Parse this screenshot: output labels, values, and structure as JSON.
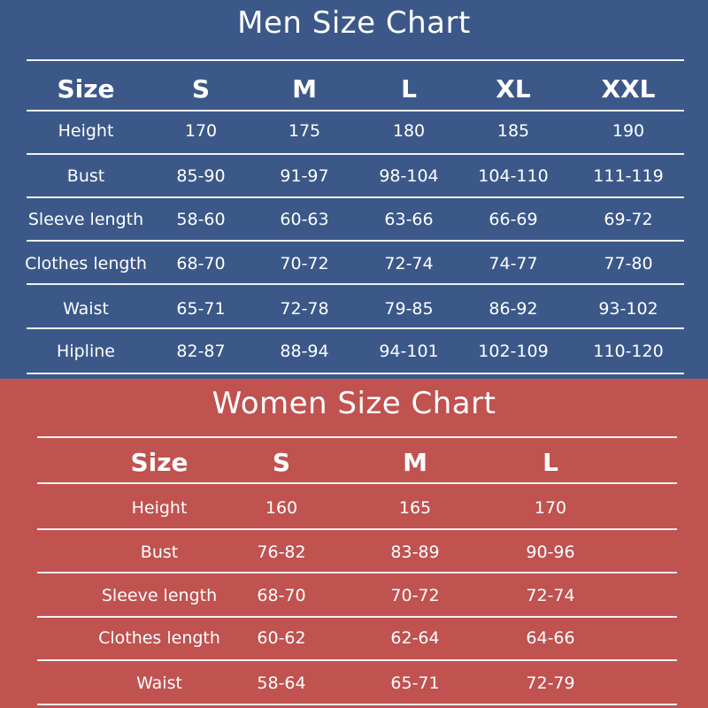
{
  "men": {
    "title": "Men Size Chart",
    "header": [
      "Size",
      "S",
      "M",
      "L",
      "XL",
      "XXL"
    ],
    "rows": [
      [
        "Height",
        "170",
        "175",
        "180",
        "185",
        "190"
      ],
      [
        "Bust",
        "85-90",
        "91-97",
        "98-104",
        "104-110",
        "111-119"
      ],
      [
        "Sleeve length",
        "58-60",
        "60-63",
        "63-66",
        "66-69",
        "69-72"
      ],
      [
        "Clothes length",
        "68-70",
        "70-72",
        "72-74",
        "74-77",
        "77-80"
      ],
      [
        "Waist",
        "65-71",
        "72-78",
        "79-85",
        "86-92",
        "93-102"
      ],
      [
        "Hipline",
        "82-87",
        "88-94",
        "94-101",
        "102-109",
        "110-120"
      ]
    ]
  },
  "women": {
    "title": "Women Size Chart",
    "header": [
      "Size",
      "S",
      "M",
      "L"
    ],
    "rows": [
      [
        "Height",
        "160",
        "165",
        "170"
      ],
      [
        "Bust",
        "76-82",
        "83-89",
        "90-96"
      ],
      [
        "Sleeve length",
        "68-70",
        "70-72",
        "72-74"
      ],
      [
        "Clothes length",
        "60-62",
        "62-64",
        "64-66"
      ],
      [
        "Waist",
        "58-64",
        "65-71",
        "72-79"
      ]
    ]
  },
  "colors": {
    "men_background": "#3b5889",
    "women_background": "#c05250",
    "text": "#ffffff"
  }
}
